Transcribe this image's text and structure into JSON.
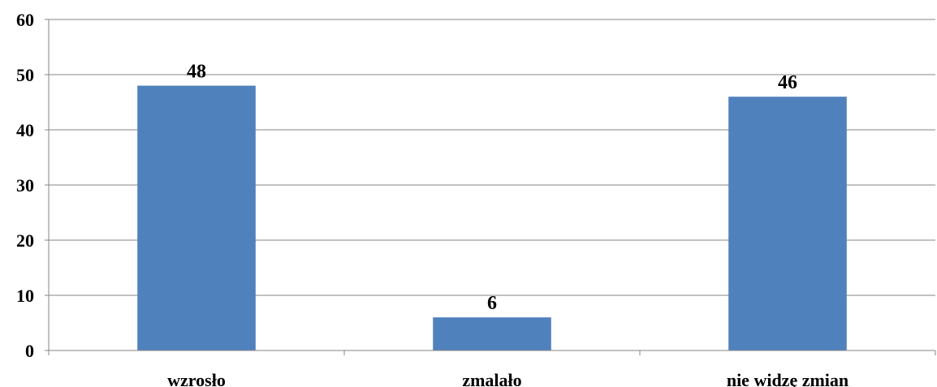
{
  "chart_data": {
    "type": "bar",
    "categories": [
      "wzrosło",
      "zmalało",
      "nie widzę zmian"
    ],
    "values": [
      48,
      6,
      46
    ],
    "data_labels": [
      "48",
      "6",
      "46"
    ],
    "ylim": [
      0,
      60
    ],
    "yticks": [
      0,
      10,
      20,
      30,
      40,
      50,
      60
    ],
    "grid": true,
    "legend": "none"
  },
  "colors": {
    "bar": "#4f81bd",
    "grid": "#868686"
  }
}
